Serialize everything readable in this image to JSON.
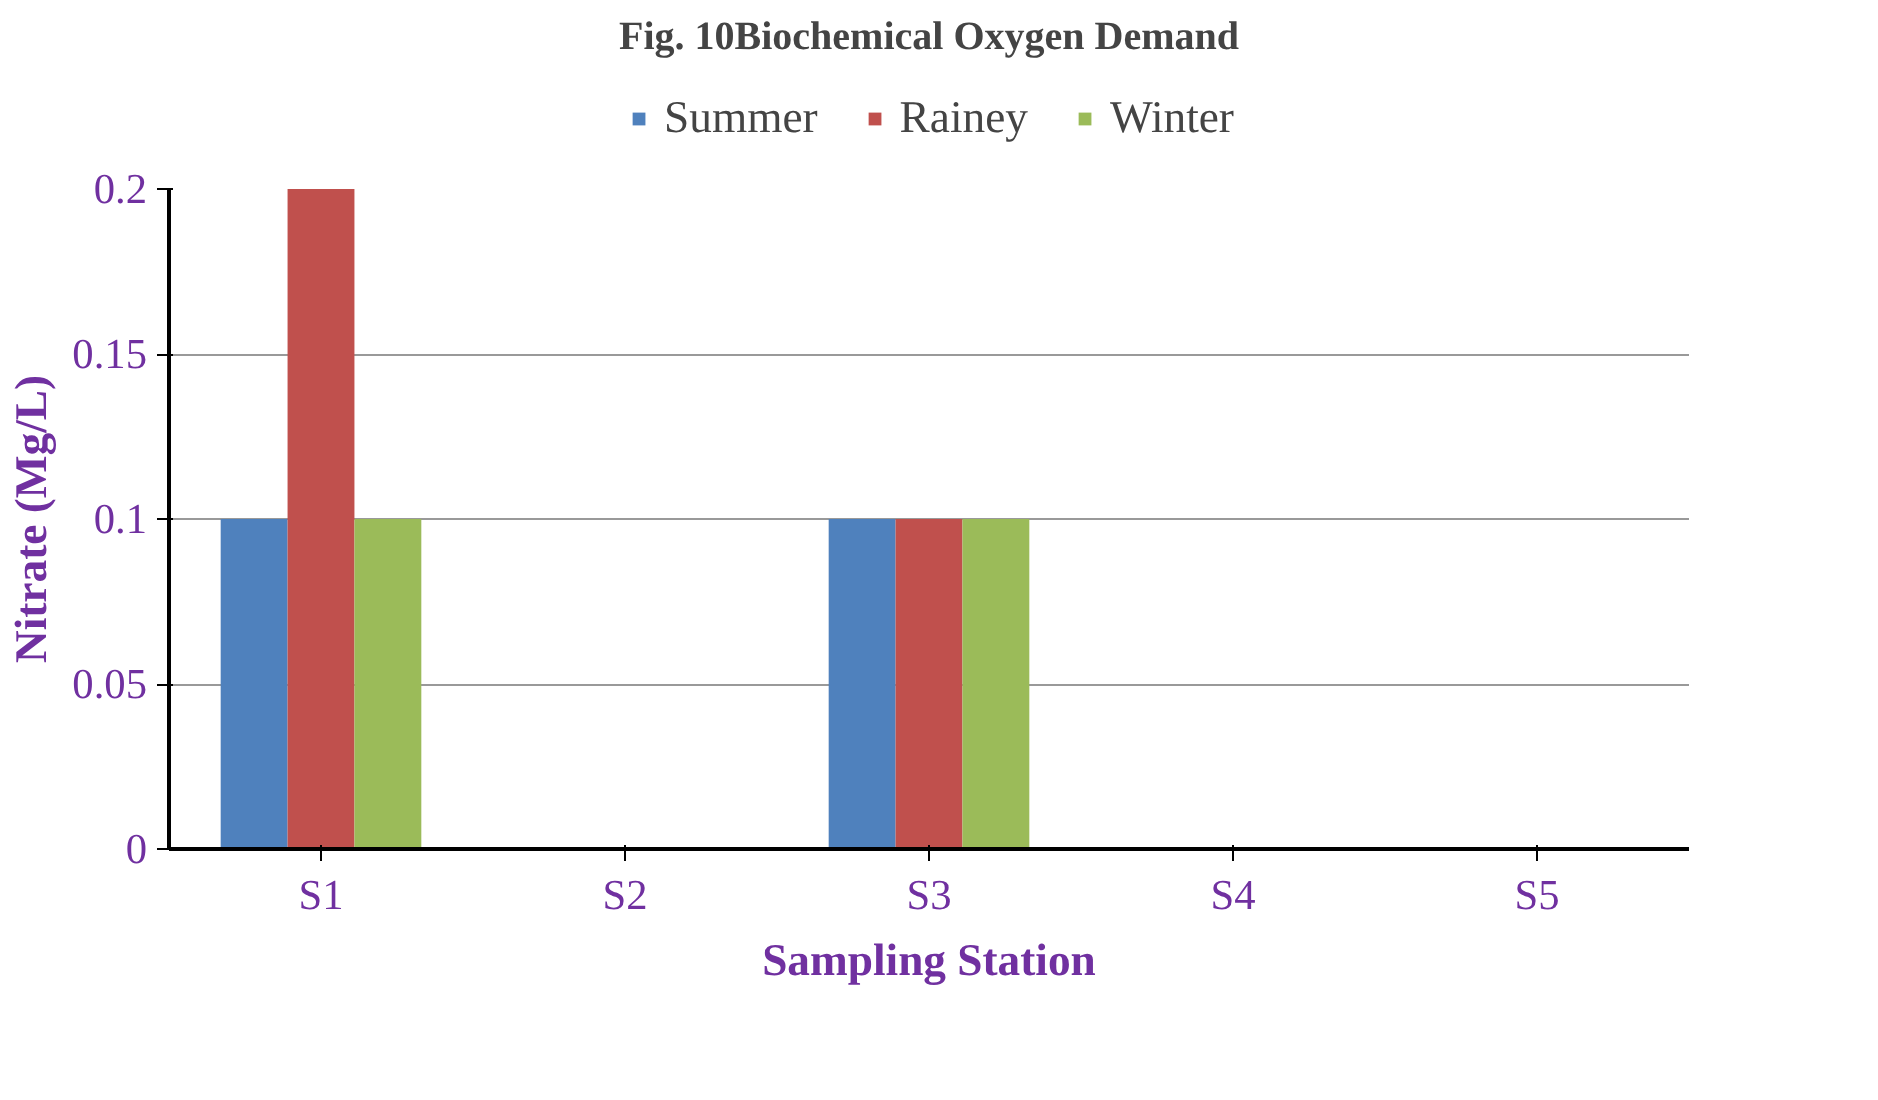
{
  "chart_data": {
    "type": "bar",
    "title": "Fig. 10Biochemical Oxygen Demand",
    "xlabel": "Sampling Station",
    "ylabel": "Nitrate (Mg/L)",
    "categories": [
      "S1",
      "S2",
      "S3",
      "S4",
      "S5"
    ],
    "series": [
      {
        "name": "Summer",
        "color": "#4f81bd",
        "values": [
          0.1,
          0,
          0.1,
          0,
          0
        ]
      },
      {
        "name": "Rainey",
        "color": "#c0504d",
        "values": [
          0.2,
          0,
          0.1,
          0,
          0
        ]
      },
      {
        "name": "Winter",
        "color": "#9bbb59",
        "values": [
          0.1,
          0,
          0.1,
          0,
          0
        ]
      }
    ],
    "ylim": [
      0,
      0.2
    ],
    "yticks": [
      0,
      0.05,
      0.1,
      0.15,
      0.2
    ],
    "grid": "y",
    "legend": "top"
  }
}
